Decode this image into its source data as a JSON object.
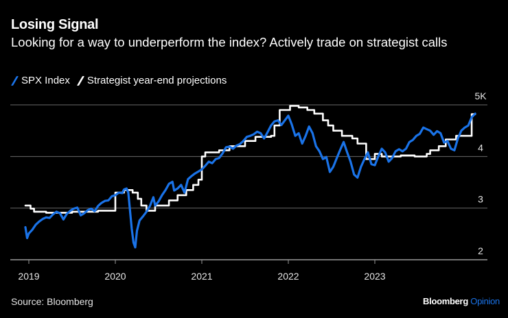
{
  "header": {
    "title": "Losing Signal",
    "subtitle": "Looking for a way to underperform the index? Actively trade on strategist calls"
  },
  "legend": [
    {
      "label": "SPX Index",
      "color": "#1a73e8"
    },
    {
      "label": "Strategist year-end projections",
      "color": "#ffffff"
    }
  ],
  "footer": {
    "source": "Source: Bloomberg",
    "brand_main": "Bloomberg",
    "brand_sub": "Opinion"
  },
  "chart_data": {
    "type": "line",
    "title": "Losing Signal",
    "subtitle": "Looking for a way to underperform the index? Actively trade on strategist calls",
    "xlabel": "",
    "ylabel": "",
    "x_ticks": [
      "2019",
      "2020",
      "2021",
      "2022",
      "2023"
    ],
    "y_ticks": [
      {
        "value": 2000,
        "label": "2"
      },
      {
        "value": 3000,
        "label": "3"
      },
      {
        "value": 4000,
        "label": "4"
      },
      {
        "value": 5000,
        "label": "5K"
      }
    ],
    "ylim": [
      2000,
      5000
    ],
    "xlim": [
      2018.95,
      2024.35
    ],
    "grid": true,
    "legend_position": "top-left",
    "series": [
      {
        "name": "SPX Index",
        "color": "#1a73e8",
        "style": "line",
        "points": [
          [
            2018.96,
            2630
          ],
          [
            2018.98,
            2420
          ],
          [
            2019.0,
            2510
          ],
          [
            2019.04,
            2580
          ],
          [
            2019.08,
            2680
          ],
          [
            2019.12,
            2740
          ],
          [
            2019.16,
            2790
          ],
          [
            2019.2,
            2820
          ],
          [
            2019.24,
            2810
          ],
          [
            2019.28,
            2880
          ],
          [
            2019.32,
            2930
          ],
          [
            2019.36,
            2900
          ],
          [
            2019.4,
            2780
          ],
          [
            2019.44,
            2890
          ],
          [
            2019.48,
            2950
          ],
          [
            2019.52,
            2990
          ],
          [
            2019.56,
            3010
          ],
          [
            2019.6,
            2860
          ],
          [
            2019.64,
            2900
          ],
          [
            2019.68,
            2960
          ],
          [
            2019.72,
            2990
          ],
          [
            2019.76,
            2940
          ],
          [
            2019.8,
            3040
          ],
          [
            2019.84,
            3100
          ],
          [
            2019.88,
            3140
          ],
          [
            2019.92,
            3150
          ],
          [
            2019.96,
            3230
          ],
          [
            2020.0,
            3250
          ],
          [
            2020.04,
            3300
          ],
          [
            2020.08,
            3290
          ],
          [
            2020.1,
            3360
          ],
          [
            2020.13,
            3380
          ],
          [
            2020.15,
            3300
          ],
          [
            2020.17,
            2950
          ],
          [
            2020.19,
            2600
          ],
          [
            2020.21,
            2330
          ],
          [
            2020.23,
            2240
          ],
          [
            2020.25,
            2560
          ],
          [
            2020.28,
            2760
          ],
          [
            2020.32,
            2840
          ],
          [
            2020.36,
            2930
          ],
          [
            2020.4,
            3040
          ],
          [
            2020.44,
            3210
          ],
          [
            2020.46,
            3050
          ],
          [
            2020.5,
            3130
          ],
          [
            2020.54,
            3250
          ],
          [
            2020.58,
            3350
          ],
          [
            2020.62,
            3470
          ],
          [
            2020.66,
            3510
          ],
          [
            2020.68,
            3340
          ],
          [
            2020.72,
            3380
          ],
          [
            2020.76,
            3450
          ],
          [
            2020.8,
            3300
          ],
          [
            2020.84,
            3560
          ],
          [
            2020.88,
            3620
          ],
          [
            2020.92,
            3670
          ],
          [
            2020.96,
            3710
          ],
          [
            2021.0,
            3750
          ],
          [
            2021.04,
            3820
          ],
          [
            2021.08,
            3900
          ],
          [
            2021.12,
            3870
          ],
          [
            2021.16,
            3950
          ],
          [
            2021.2,
            3970
          ],
          [
            2021.24,
            4060
          ],
          [
            2021.28,
            4180
          ],
          [
            2021.32,
            4190
          ],
          [
            2021.36,
            4150
          ],
          [
            2021.4,
            4210
          ],
          [
            2021.44,
            4240
          ],
          [
            2021.48,
            4300
          ],
          [
            2021.52,
            4380
          ],
          [
            2021.56,
            4400
          ],
          [
            2021.6,
            4430
          ],
          [
            2021.64,
            4480
          ],
          [
            2021.68,
            4450
          ],
          [
            2021.72,
            4350
          ],
          [
            2021.76,
            4470
          ],
          [
            2021.8,
            4600
          ],
          [
            2021.84,
            4680
          ],
          [
            2021.88,
            4700
          ],
          [
            2021.92,
            4610
          ],
          [
            2021.96,
            4700
          ],
          [
            2022.0,
            4790
          ],
          [
            2022.04,
            4620
          ],
          [
            2022.08,
            4400
          ],
          [
            2022.12,
            4450
          ],
          [
            2022.16,
            4250
          ],
          [
            2022.2,
            4400
          ],
          [
            2022.24,
            4580
          ],
          [
            2022.28,
            4450
          ],
          [
            2022.32,
            4200
          ],
          [
            2022.36,
            4100
          ],
          [
            2022.4,
            3950
          ],
          [
            2022.44,
            3990
          ],
          [
            2022.48,
            3700
          ],
          [
            2022.52,
            3800
          ],
          [
            2022.56,
            3970
          ],
          [
            2022.6,
            4130
          ],
          [
            2022.64,
            4280
          ],
          [
            2022.68,
            4080
          ],
          [
            2022.72,
            3900
          ],
          [
            2022.76,
            3650
          ],
          [
            2022.8,
            3590
          ],
          [
            2022.84,
            3800
          ],
          [
            2022.88,
            3950
          ],
          [
            2022.92,
            4080
          ],
          [
            2022.96,
            3850
          ],
          [
            2023.0,
            3830
          ],
          [
            2023.04,
            4000
          ],
          [
            2023.08,
            4150
          ],
          [
            2023.12,
            4080
          ],
          [
            2023.16,
            3900
          ],
          [
            2023.2,
            3970
          ],
          [
            2023.24,
            4100
          ],
          [
            2023.28,
            4140
          ],
          [
            2023.32,
            4100
          ],
          [
            2023.36,
            4150
          ],
          [
            2023.4,
            4280
          ],
          [
            2023.44,
            4320
          ],
          [
            2023.48,
            4400
          ],
          [
            2023.52,
            4440
          ],
          [
            2023.56,
            4560
          ],
          [
            2023.6,
            4530
          ],
          [
            2023.64,
            4500
          ],
          [
            2023.68,
            4420
          ],
          [
            2023.72,
            4490
          ],
          [
            2023.76,
            4450
          ],
          [
            2023.8,
            4270
          ],
          [
            2023.84,
            4300
          ],
          [
            2023.88,
            4150
          ],
          [
            2023.92,
            4120
          ],
          [
            2023.96,
            4350
          ],
          [
            2024.0,
            4500
          ],
          [
            2024.04,
            4560
          ],
          [
            2024.08,
            4600
          ],
          [
            2024.12,
            4760
          ],
          [
            2024.16,
            4830
          ]
        ]
      },
      {
        "name": "Strategist year-end projections",
        "color": "#ffffff",
        "style": "step",
        "points": [
          [
            2018.96,
            3050
          ],
          [
            2019.02,
            3050
          ],
          [
            2019.02,
            2990
          ],
          [
            2019.06,
            2990
          ],
          [
            2019.06,
            2930
          ],
          [
            2019.2,
            2930
          ],
          [
            2019.2,
            2910
          ],
          [
            2019.5,
            2910
          ],
          [
            2019.5,
            2930
          ],
          [
            2019.8,
            2930
          ],
          [
            2019.8,
            2950
          ],
          [
            2020.0,
            2950
          ],
          [
            2020.0,
            3300
          ],
          [
            2020.1,
            3300
          ],
          [
            2020.1,
            3350
          ],
          [
            2020.2,
            3350
          ],
          [
            2020.2,
            3300
          ],
          [
            2020.26,
            3300
          ],
          [
            2020.26,
            3180
          ],
          [
            2020.3,
            3180
          ],
          [
            2020.3,
            3050
          ],
          [
            2020.36,
            3050
          ],
          [
            2020.36,
            2950
          ],
          [
            2020.46,
            2950
          ],
          [
            2020.46,
            3050
          ],
          [
            2020.62,
            3050
          ],
          [
            2020.62,
            3150
          ],
          [
            2020.72,
            3150
          ],
          [
            2020.72,
            3250
          ],
          [
            2020.82,
            3250
          ],
          [
            2020.82,
            3350
          ],
          [
            2020.9,
            3350
          ],
          [
            2020.9,
            3450
          ],
          [
            2020.96,
            3450
          ],
          [
            2020.96,
            3550
          ],
          [
            2021.0,
            3550
          ],
          [
            2021.0,
            4000
          ],
          [
            2021.04,
            4000
          ],
          [
            2021.04,
            4080
          ],
          [
            2021.2,
            4080
          ],
          [
            2021.2,
            4120
          ],
          [
            2021.32,
            4120
          ],
          [
            2021.32,
            4200
          ],
          [
            2021.5,
            4200
          ],
          [
            2021.5,
            4300
          ],
          [
            2021.62,
            4300
          ],
          [
            2021.62,
            4380
          ],
          [
            2021.8,
            4380
          ],
          [
            2021.8,
            4400
          ],
          [
            2021.84,
            4400
          ],
          [
            2021.84,
            4600
          ],
          [
            2021.9,
            4600
          ],
          [
            2021.9,
            4900
          ],
          [
            2022.02,
            4900
          ],
          [
            2022.02,
            4980
          ],
          [
            2022.12,
            4980
          ],
          [
            2022.12,
            4950
          ],
          [
            2022.22,
            4950
          ],
          [
            2022.22,
            4900
          ],
          [
            2022.3,
            4900
          ],
          [
            2022.3,
            4830
          ],
          [
            2022.4,
            4830
          ],
          [
            2022.4,
            4700
          ],
          [
            2022.46,
            4700
          ],
          [
            2022.46,
            4600
          ],
          [
            2022.52,
            4600
          ],
          [
            2022.52,
            4500
          ],
          [
            2022.62,
            4500
          ],
          [
            2022.62,
            4400
          ],
          [
            2022.74,
            4400
          ],
          [
            2022.74,
            4350
          ],
          [
            2022.8,
            4350
          ],
          [
            2022.8,
            4250
          ],
          [
            2022.9,
            4250
          ],
          [
            2022.9,
            3950
          ],
          [
            2023.0,
            3950
          ],
          [
            2023.0,
            4050
          ],
          [
            2023.08,
            4050
          ],
          [
            2023.08,
            4000
          ],
          [
            2023.3,
            4000
          ],
          [
            2023.3,
            4020
          ],
          [
            2023.46,
            4020
          ],
          [
            2023.46,
            4000
          ],
          [
            2023.6,
            4000
          ],
          [
            2023.6,
            4050
          ],
          [
            2023.64,
            4050
          ],
          [
            2023.64,
            4120
          ],
          [
            2023.74,
            4120
          ],
          [
            2023.74,
            4200
          ],
          [
            2023.82,
            4200
          ],
          [
            2023.82,
            4330
          ],
          [
            2023.94,
            4330
          ],
          [
            2023.94,
            4400
          ],
          [
            2024.12,
            4400
          ],
          [
            2024.12,
            4820
          ],
          [
            2024.16,
            4820
          ]
        ]
      }
    ]
  }
}
